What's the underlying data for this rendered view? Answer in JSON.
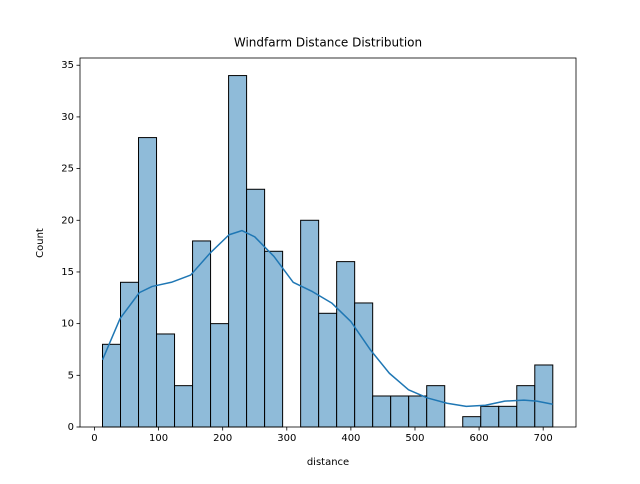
{
  "chart_data": {
    "type": "histogram",
    "title": "Windfarm Distance Distribution",
    "x_label": "distance",
    "y_label": "Count",
    "bins": [
      12.5,
      40.6,
      68.7,
      96.8,
      124.9,
      153.0,
      181.1,
      209.2,
      237.3,
      265.4,
      293.5,
      321.6,
      349.7,
      377.8,
      405.9,
      434.0,
      462.1,
      490.2,
      518.3,
      546.4,
      574.5,
      602.6,
      630.7,
      658.8,
      686.9,
      715.0
    ],
    "counts": [
      8,
      14,
      28,
      9,
      4,
      18,
      10,
      34,
      23,
      17,
      0,
      20,
      11,
      16,
      12,
      3,
      3,
      3,
      4,
      0,
      1,
      2,
      2,
      4,
      6
    ],
    "color": "#8fbbd9",
    "edgecolor": "#000000",
    "kde": {
      "color": "#1f77b4",
      "x": [
        12.5,
        40,
        70,
        90,
        120,
        150,
        180,
        210,
        230,
        250,
        280,
        310,
        340,
        370,
        400,
        430,
        460,
        490,
        520,
        550,
        580,
        610,
        640,
        670,
        690,
        715
      ],
      "y": [
        6.5,
        10.5,
        13,
        13.6,
        14,
        14.7,
        16.8,
        18.6,
        19,
        18.4,
        16.5,
        14,
        13.1,
        12,
        10.2,
        7.5,
        5.2,
        3.6,
        2.8,
        2.3,
        2.0,
        2.1,
        2.5,
        2.6,
        2.5,
        2.2
      ]
    },
    "xlim": [
      -22.6,
      751.2
    ],
    "ylim": [
      0,
      35.7
    ],
    "xticks": [
      0,
      100,
      200,
      300,
      400,
      500,
      600,
      700
    ],
    "yticks": [
      0,
      5,
      10,
      15,
      20,
      25,
      30,
      35
    ]
  }
}
